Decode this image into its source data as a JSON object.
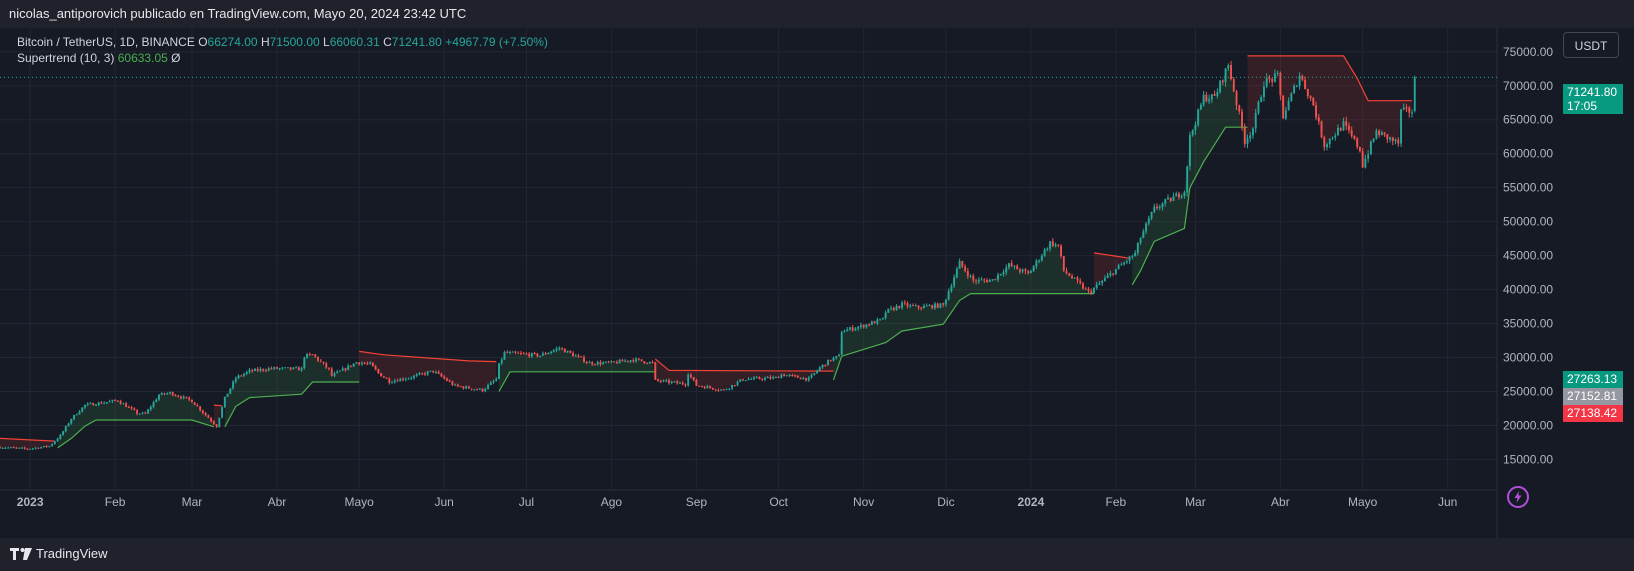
{
  "header": {
    "publisher_line": "nicolas_antiporovich publicado en TradingView.com, Mayo 20, 2024 23:42 UTC"
  },
  "legend": {
    "symbol": "Bitcoin / TetherUS, 1D, BINANCE",
    "o_label": "O",
    "o_value": "66274.00",
    "h_label": "H",
    "h_value": "71500.00",
    "l_label": "L",
    "l_value": "66060.31",
    "c_label": "C",
    "c_value": "71241.80",
    "change": "+4967.79 (+7.50%)",
    "indicator_name": "Supertrend (10, 3)",
    "indicator_value": "60633.05",
    "indicator_extra": "Ø"
  },
  "currency_button": "USDT",
  "price_tags": {
    "last": {
      "price": "71241.80",
      "countdown": "17:05",
      "color": "#089981"
    },
    "tag2": {
      "price": "27263.13",
      "color": "#089981"
    },
    "tag3": {
      "price": "27152.81",
      "color": "#9598a1"
    },
    "tag4": {
      "price": "27138.42",
      "color": "#f23645"
    }
  },
  "brand": {
    "name": "TradingView"
  },
  "colors": {
    "up": "#26a69a",
    "down": "#ef5350",
    "st_up": "#4caf50",
    "st_down": "#f44336",
    "background": "#161a25",
    "grid": "#232632"
  },
  "icons": {
    "brand": "tradingview-logo-icon",
    "bolt": "lightning-icon"
  },
  "chart_data": {
    "type": "candlestick",
    "title": "Bitcoin / TetherUS, 1D, BINANCE",
    "y_axis": {
      "ticks": [
        15000,
        20000,
        25000,
        30000,
        35000,
        40000,
        45000,
        50000,
        55000,
        60000,
        65000,
        70000,
        75000
      ],
      "tick_labels": [
        "15000.00",
        "20000.00",
        "25000.00",
        "30000.00",
        "35000.00",
        "40000.00",
        "45000.00",
        "50000.00",
        "55000.00",
        "60000.00",
        "65000.00",
        "70000.00",
        "75000.00"
      ],
      "range": [
        10500,
        78500
      ],
      "side": "right"
    },
    "x_axis": {
      "labels": [
        "2023",
        "Feb",
        "Mar",
        "Abr",
        "Mayo",
        "Jun",
        "Jul",
        "Ago",
        "Sep",
        "Oct",
        "Nov",
        "Dic",
        "2024",
        "Feb",
        "Mar",
        "Abr",
        "Mayo",
        "Jun"
      ],
      "dates": [
        "2023-01-01",
        "2023-02-01",
        "2023-03-01",
        "2023-04-01",
        "2023-05-01",
        "2023-06-01",
        "2023-07-01",
        "2023-08-01",
        "2023-09-01",
        "2023-10-01",
        "2023-11-01",
        "2023-12-01",
        "2024-01-01",
        "2024-02-01",
        "2024-03-01",
        "2024-04-01",
        "2024-05-01",
        "2024-06-01"
      ],
      "range": [
        "2022-12-21",
        "2024-06-19"
      ]
    },
    "grid": true,
    "last_price": 71241.8,
    "price_anchors": [
      [
        "2022-12-21",
        16800
      ],
      [
        "2022-12-31",
        16550
      ],
      [
        "2023-01-08",
        16950
      ],
      [
        "2023-01-12",
        18500
      ],
      [
        "2023-01-16",
        21000
      ],
      [
        "2023-01-21",
        23000
      ],
      [
        "2023-01-30",
        23500
      ],
      [
        "2023-02-02",
        23700
      ],
      [
        "2023-02-09",
        21800
      ],
      [
        "2023-02-12",
        21700
      ],
      [
        "2023-02-17",
        24500
      ],
      [
        "2023-02-21",
        24800
      ],
      [
        "2023-03-01",
        23600
      ],
      [
        "2023-03-09",
        20300
      ],
      [
        "2023-03-10",
        19900
      ],
      [
        "2023-03-13",
        24000
      ],
      [
        "2023-03-17",
        27000
      ],
      [
        "2023-03-22",
        28000
      ],
      [
        "2023-03-30",
        28400
      ],
      [
        "2023-04-10",
        28300
      ],
      [
        "2023-04-11",
        30200
      ],
      [
        "2023-04-14",
        30400
      ],
      [
        "2023-04-20",
        28200
      ],
      [
        "2023-04-21",
        27300
      ],
      [
        "2023-04-26",
        28400
      ],
      [
        "2023-04-30",
        29300
      ],
      [
        "2023-05-05",
        29000
      ],
      [
        "2023-05-08",
        27700
      ],
      [
        "2023-05-12",
        26500
      ],
      [
        "2023-05-20",
        27100
      ],
      [
        "2023-05-28",
        28000
      ],
      [
        "2023-06-05",
        25800
      ],
      [
        "2023-06-15",
        25200
      ],
      [
        "2023-06-20",
        26800
      ],
      [
        "2023-06-21",
        28900
      ],
      [
        "2023-06-23",
        30700
      ],
      [
        "2023-07-06",
        30300
      ],
      [
        "2023-07-13",
        31400
      ],
      [
        "2023-07-24",
        29200
      ],
      [
        "2023-08-01",
        29200
      ],
      [
        "2023-08-09",
        29700
      ],
      [
        "2023-08-16",
        29200
      ],
      [
        "2023-08-17",
        26600
      ],
      [
        "2023-08-28",
        26100
      ],
      [
        "2023-08-29",
        27700
      ],
      [
        "2023-09-01",
        25900
      ],
      [
        "2023-09-11",
        25200
      ],
      [
        "2023-09-18",
        26800
      ],
      [
        "2023-09-30",
        27000
      ],
      [
        "2023-10-02",
        27500
      ],
      [
        "2023-10-12",
        26800
      ],
      [
        "2023-10-16",
        28500
      ],
      [
        "2023-10-20",
        29700
      ],
      [
        "2023-10-23",
        30200
      ],
      [
        "2023-10-24",
        33900
      ],
      [
        "2023-10-31",
        34600
      ],
      [
        "2023-11-08",
        35600
      ],
      [
        "2023-11-09",
        36700
      ],
      [
        "2023-11-15",
        37800
      ],
      [
        "2023-11-20",
        37400
      ],
      [
        "2023-11-30",
        37700
      ],
      [
        "2023-12-04",
        41900
      ],
      [
        "2023-12-06",
        43900
      ],
      [
        "2023-12-11",
        41300
      ],
      [
        "2023-12-18",
        41400
      ],
      [
        "2023-12-24",
        43600
      ],
      [
        "2023-12-31",
        42300
      ],
      [
        "2024-01-08",
        46900
      ],
      [
        "2024-01-11",
        46400
      ],
      [
        "2024-01-13",
        42800
      ],
      [
        "2024-01-22",
        39600
      ],
      [
        "2024-01-23",
        39800
      ],
      [
        "2024-01-31",
        42600
      ],
      [
        "2024-02-08",
        45300
      ],
      [
        "2024-02-10",
        47700
      ],
      [
        "2024-02-15",
        51900
      ],
      [
        "2024-02-26",
        54500
      ],
      [
        "2024-02-28",
        62400
      ],
      [
        "2024-03-04",
        68300
      ],
      [
        "2024-03-08",
        68300
      ],
      [
        "2024-03-13",
        73100
      ],
      [
        "2024-03-19",
        61900
      ],
      [
        "2024-03-22",
        63800
      ],
      [
        "2024-03-26",
        70500
      ],
      [
        "2024-03-31",
        71300
      ],
      [
        "2024-04-02",
        65500
      ],
      [
        "2024-04-08",
        71600
      ],
      [
        "2024-04-13",
        67200
      ],
      [
        "2024-04-17",
        61300
      ],
      [
        "2024-04-24",
        64300
      ],
      [
        "2024-04-30",
        60600
      ],
      [
        "2024-05-01",
        58300
      ],
      [
        "2024-05-06",
        63200
      ],
      [
        "2024-05-14",
        61500
      ],
      [
        "2024-05-15",
        66200
      ],
      [
        "2024-05-19",
        66274
      ],
      [
        "2024-05-20",
        71241.8
      ]
    ],
    "supertrend_segments": [
      {
        "dir": "down",
        "points": [
          [
            "2022-12-21",
            18100
          ],
          [
            "2023-01-10",
            17700
          ]
        ]
      },
      {
        "dir": "up",
        "points": [
          [
            "2023-01-11",
            16700
          ],
          [
            "2023-01-16",
            18100
          ],
          [
            "2023-01-21",
            19900
          ],
          [
            "2023-01-25",
            20800
          ],
          [
            "2023-03-01",
            20800
          ],
          [
            "2023-03-09",
            19800
          ]
        ]
      },
      {
        "dir": "down",
        "points": [
          [
            "2023-03-09",
            23000
          ],
          [
            "2023-03-12",
            22900
          ]
        ]
      },
      {
        "dir": "up",
        "points": [
          [
            "2023-03-13",
            19800
          ],
          [
            "2023-03-17",
            22800
          ],
          [
            "2023-03-22",
            24100
          ],
          [
            "2023-04-10",
            24600
          ],
          [
            "2023-04-14",
            26400
          ],
          [
            "2023-05-01",
            26400
          ]
        ]
      },
      {
        "dir": "down",
        "points": [
          [
            "2023-05-01",
            30900
          ],
          [
            "2023-05-10",
            30400
          ],
          [
            "2023-06-10",
            29500
          ],
          [
            "2023-06-20",
            29400
          ]
        ]
      },
      {
        "dir": "up",
        "points": [
          [
            "2023-06-21",
            25000
          ],
          [
            "2023-06-25",
            27900
          ],
          [
            "2023-08-17",
            27900
          ]
        ]
      },
      {
        "dir": "down",
        "points": [
          [
            "2023-08-17",
            29800
          ],
          [
            "2023-08-22",
            28100
          ],
          [
            "2023-10-21",
            28000
          ]
        ]
      },
      {
        "dir": "up",
        "points": [
          [
            "2023-10-21",
            26700
          ],
          [
            "2023-10-24",
            30200
          ],
          [
            "2023-11-09",
            32200
          ],
          [
            "2023-11-15",
            33900
          ],
          [
            "2023-11-30",
            34900
          ],
          [
            "2023-12-06",
            38400
          ],
          [
            "2023-12-10",
            39400
          ],
          [
            "2024-01-24",
            39400
          ]
        ]
      },
      {
        "dir": "down",
        "points": [
          [
            "2024-01-24",
            45400
          ],
          [
            "2024-02-03",
            44800
          ],
          [
            "2024-02-06",
            44600
          ]
        ]
      },
      {
        "dir": "up",
        "points": [
          [
            "2024-02-07",
            40700
          ],
          [
            "2024-02-10",
            42800
          ],
          [
            "2024-02-15",
            47100
          ],
          [
            "2024-02-26",
            49000
          ],
          [
            "2024-02-28",
            55000
          ],
          [
            "2024-03-04",
            58800
          ],
          [
            "2024-03-12",
            63900
          ],
          [
            "2024-03-20",
            63900
          ]
        ]
      },
      {
        "dir": "down",
        "points": [
          [
            "2024-03-20",
            74400
          ],
          [
            "2024-04-24",
            74400
          ],
          [
            "2024-04-29",
            71100
          ],
          [
            "2024-05-03",
            67800
          ],
          [
            "2024-05-19",
            67800
          ]
        ]
      },
      {
        "dir": "up",
        "points": [
          [
            "2024-05-20",
            60633
          ]
        ]
      }
    ]
  }
}
